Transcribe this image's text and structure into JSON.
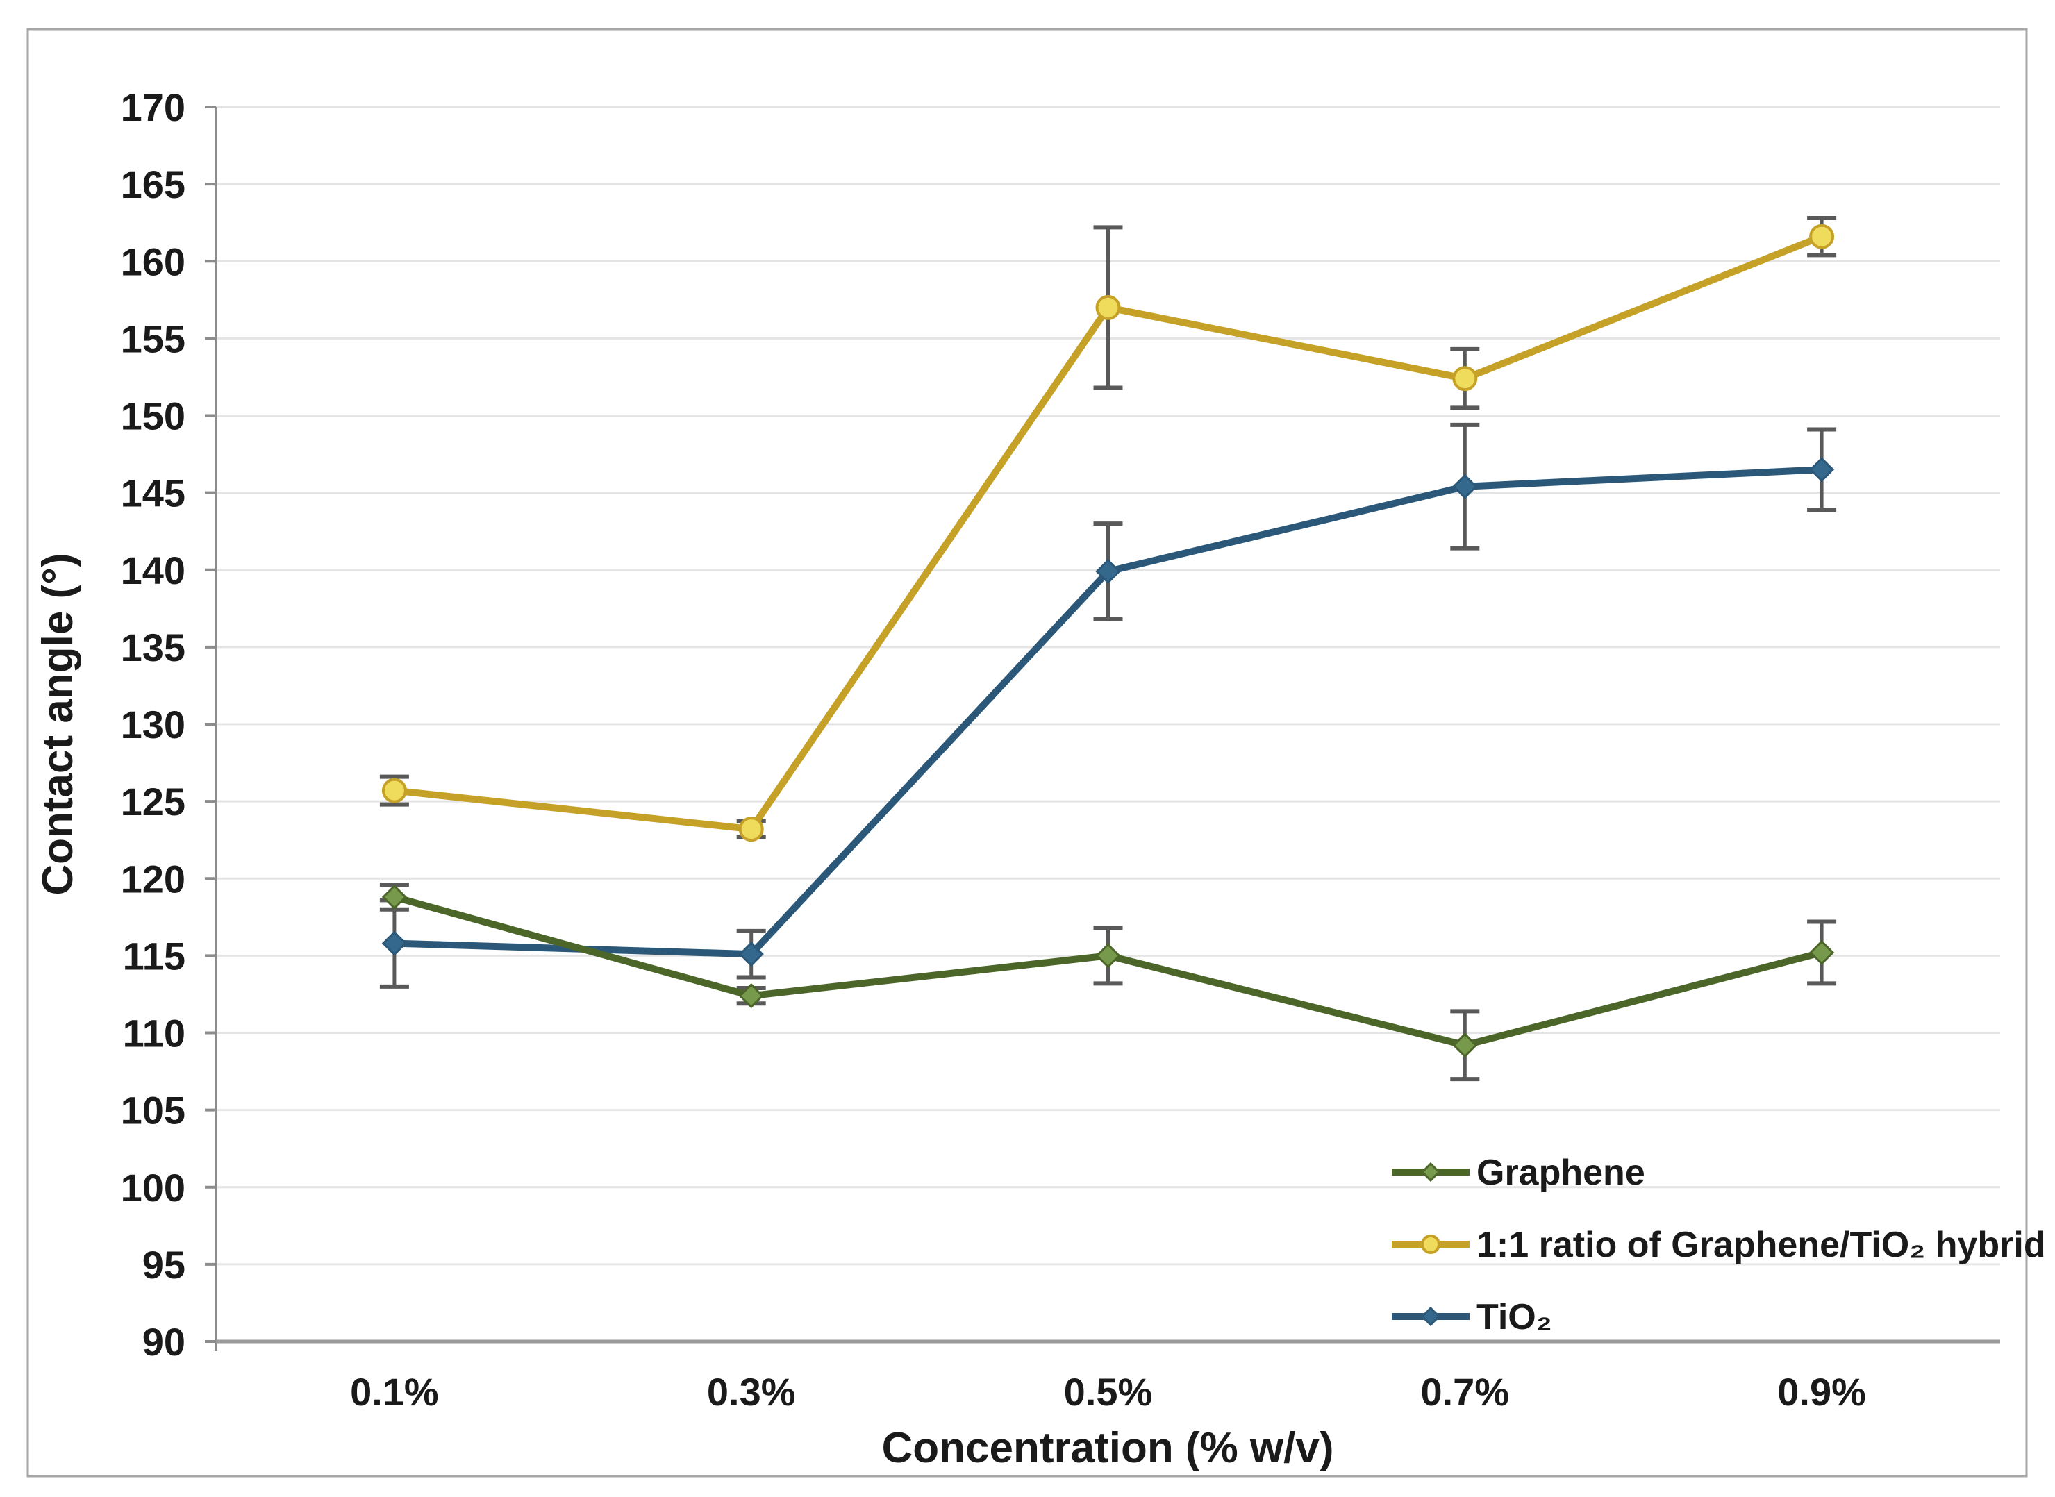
{
  "figure": {
    "background_color": "#FFFFFF",
    "border_color": "#A6A6A6",
    "text_color": "#1A1A1A",
    "gridline_color": "#E4E4E4",
    "x_axis_line_color": "#9A9A9A",
    "y_axis_line_color": "#8C8C8C",
    "error_bar_color": "#595959"
  },
  "chart_data": {
    "type": "line",
    "title": "",
    "xlabel": "Concentration (% w/v)",
    "ylabel": "Contact angle (°)",
    "categories": [
      "0.1%",
      "0.3%",
      "0.5%",
      "0.7%",
      "0.9%"
    ],
    "y_axis": {
      "min": 90,
      "max": 170,
      "step": 5,
      "ticks": [
        90,
        95,
        100,
        105,
        110,
        115,
        120,
        125,
        130,
        135,
        140,
        145,
        150,
        155,
        160,
        165,
        170
      ]
    },
    "grid": "horizontal",
    "legend_position": "inside-lower-right",
    "error_bars": true,
    "series": [
      {
        "name": "Graphene",
        "color": "#4C662A",
        "marker": "diamond",
        "marker_fill": "#77994C",
        "values": [
          118.8,
          112.4,
          115.0,
          109.2,
          115.2
        ],
        "errors": [
          0.8,
          0.5,
          1.8,
          2.2,
          2.0
        ]
      },
      {
        "name": "1:1 ratio of Graphene/TiO₂ hybrid",
        "color": "#C6A127",
        "marker": "circle",
        "marker_fill": "#F0DC5C",
        "values": [
          125.7,
          123.2,
          157.0,
          152.4,
          161.6
        ],
        "errors": [
          0.9,
          0.5,
          5.2,
          1.9,
          1.2
        ]
      },
      {
        "name": "TiO₂",
        "color": "#2B5878",
        "marker": "diamond",
        "marker_fill": "#35688D",
        "values": [
          115.8,
          115.1,
          139.9,
          145.4,
          146.5
        ],
        "errors": [
          2.8,
          1.5,
          3.1,
          4.0,
          2.6
        ]
      }
    ],
    "z_order": [
      1,
      2,
      0
    ]
  }
}
